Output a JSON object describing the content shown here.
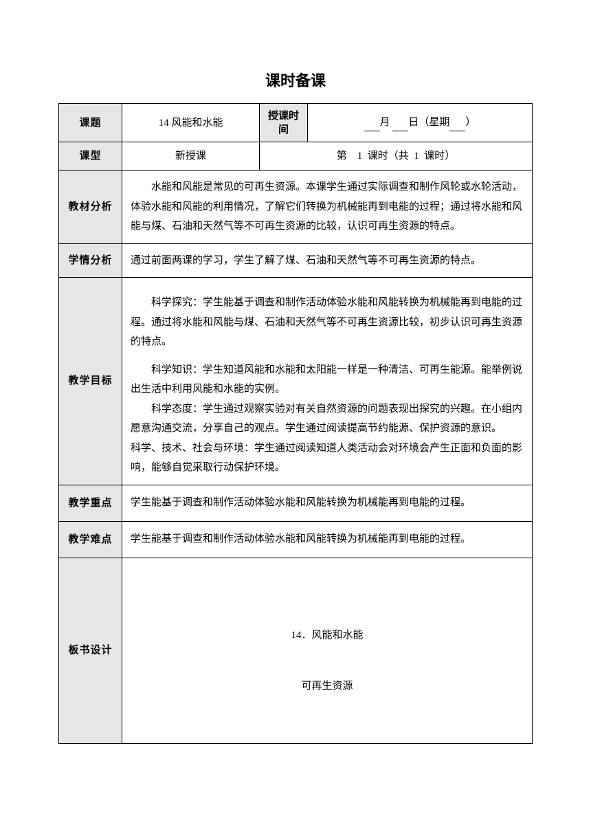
{
  "page_title": "课时备课",
  "labels": {
    "topic": "课题",
    "teach_time": "授课时间",
    "class_type": "课型",
    "material_analysis": "教材分析",
    "student_analysis": "学情分析",
    "teach_goal": "教学目标",
    "key_point": "教学重点",
    "difficult_point": "教学难点",
    "board_design": "板书设计"
  },
  "row1": {
    "topic_value": "14 风能和水能",
    "month": "月",
    "day": "日（星期",
    "suffix": "）"
  },
  "row2": {
    "class_type_value": "新授课",
    "period_text_1": "第",
    "period_num_1": "1",
    "period_text_2": "课时（共",
    "period_num_2": "1",
    "period_text_3": "课时）"
  },
  "material_analysis": "水能和风能是常见的可再生资源。本课学生通过实际调查和制作风轮或水轮活动，体验水能和风能的利用情况，了解它们转换为机械能再到电能的过程；通过将水能和风能与煤、石油和天然气等不可再生资源的比较，认识可再生资源的特点。",
  "student_analysis": "通过前面两课的学习，学生了解了煤、石油和天然气等不可再生资源的特点。",
  "goal": {
    "p1": "科学探究：学生能基于调查和制作活动体验水能和风能转换为机械能再到电能的过程。通过将水能和风能与煤、石油和天然气等不可再生资源比较，初步认识可再生资源的特点。",
    "p2": "科学知识：学生知道风能和水能和太阳能一样是一种清洁、可再生能源。能举例说出生活中利用风能和水能的实例。",
    "p3": "科学态度：学生通过观察实验对有关自然资源的问题表现出探究的兴趣。在小组内愿意沟通交流，分享自己的观点。学生通过阅读提高节约能源、保护资源的意识。",
    "p4": "科学、技术、社会与环境：学生通过阅读知道人类活动会对环境会产生正面和负面的影响，能够自觉采取行动保护环境。"
  },
  "key_point": "学生能基于调查和制作活动体验水能和风能转换为机械能再到电能的过程。",
  "difficult_point": "学生能基于调查和制作活动体验水能和风能转换为机械能再到电能的过程。",
  "board": {
    "title": "14．风能和水能",
    "sub": "可再生资源"
  },
  "colors": {
    "label_bg": "#e6e6e6",
    "border": "#000000",
    "text": "#000000",
    "background": "#ffffff"
  }
}
